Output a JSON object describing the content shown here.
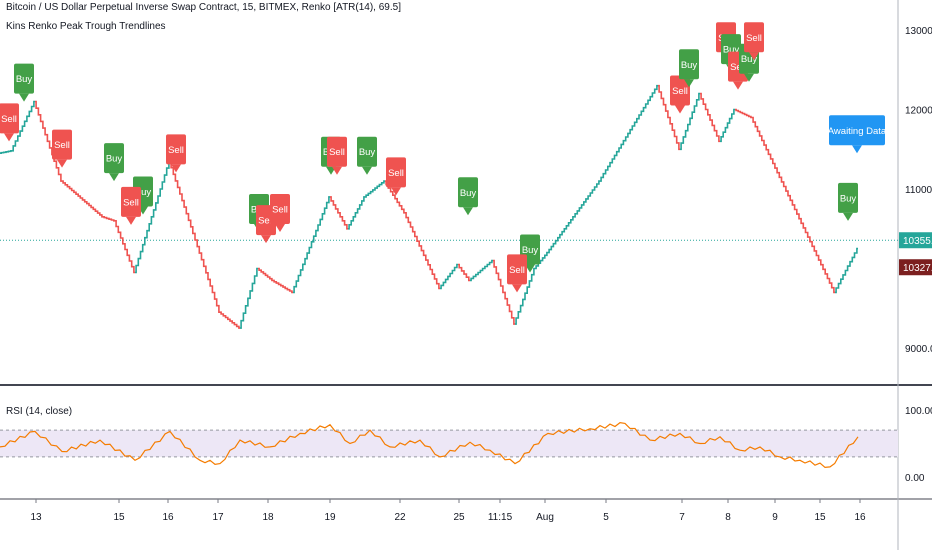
{
  "header": {
    "title": "Bitcoin / US Dollar Perpetual Inverse Swap Contract, 15, BITMEX, Renko [ATR(14), 69.5]",
    "indicator": "Kins Renko Peak Trough Trendlines"
  },
  "rsi_header": "RSI (14, close)",
  "colors": {
    "up": "#26a69a",
    "down": "#ef5350",
    "buy": "#43a047",
    "sell": "#ef5350",
    "awaiting": "#2196f3",
    "rsi_line": "#f57c00",
    "rsi_band": "#ede7f6",
    "last_price": "#26a69a",
    "price_badge": "#7b1f1f",
    "separator": "#434651"
  },
  "chart_data": [
    {
      "type": "line",
      "name": "price",
      "y_axis": {
        "ticks": [
          "13000.0",
          "12000.0",
          "11000.0",
          "9000.0"
        ],
        "ylim": [
          8700,
          13300
        ]
      },
      "x_axis": {
        "ticks": [
          "13",
          "15",
          "16",
          "17",
          "18",
          "19",
          "22",
          "25",
          "11:15",
          "Aug",
          "5",
          "7",
          "8",
          "9",
          "15",
          "16"
        ]
      },
      "last_price_label": "10355.5",
      "secondary_price_label": "10327.0",
      "x": [
        0,
        12,
        35,
        62,
        103,
        115,
        135,
        170,
        220,
        240,
        258,
        273,
        293,
        330,
        348,
        365,
        385,
        405,
        440,
        458,
        470,
        493,
        515,
        535,
        548,
        600,
        658,
        680,
        700,
        720,
        735,
        752,
        835,
        858
      ],
      "y": [
        11450,
        11480,
        12100,
        11100,
        10650,
        10600,
        9950,
        11350,
        9450,
        9250,
        10000,
        9850,
        9700,
        10900,
        10500,
        10900,
        11100,
        10700,
        9750,
        10050,
        9850,
        10100,
        9300,
        10000,
        10200,
        11100,
        12300,
        11500,
        12200,
        11600,
        12000,
        11900,
        9700,
        10250
      ],
      "signals": [
        {
          "label": "Buy",
          "type": "buy",
          "x": 24,
          "y": 12200
        },
        {
          "label": "Sell",
          "type": "sell",
          "x": 9,
          "y": 11700
        },
        {
          "label": "Sell",
          "type": "sell",
          "x": 62,
          "y": 11370
        },
        {
          "label": "Buy",
          "type": "buy",
          "x": 114,
          "y": 11200
        },
        {
          "label": "Sell",
          "type": "sell",
          "x": 176,
          "y": 11310
        },
        {
          "label": "Buy",
          "type": "buy",
          "x": 143,
          "y": 10780
        },
        {
          "label": "Sell",
          "type": "sell",
          "x": 131,
          "y": 10650
        },
        {
          "label": "Buy",
          "type": "buy",
          "x": 259,
          "y": 10560
        },
        {
          "label": "Sell",
          "type": "sell",
          "x": 266,
          "y": 10420
        },
        {
          "label": "Sell",
          "type": "sell",
          "x": 280,
          "y": 10560
        },
        {
          "label": "Buy",
          "type": "buy",
          "x": 331,
          "y": 11280
        },
        {
          "label": "Sell",
          "type": "sell",
          "x": 337,
          "y": 11280
        },
        {
          "label": "Buy",
          "type": "buy",
          "x": 367,
          "y": 11280
        },
        {
          "label": "Sell",
          "type": "sell",
          "x": 396,
          "y": 11020
        },
        {
          "label": "Buy",
          "type": "buy",
          "x": 468,
          "y": 10770
        },
        {
          "label": "Buy",
          "type": "buy",
          "x": 530,
          "y": 10050
        },
        {
          "label": "Sell",
          "type": "sell",
          "x": 517,
          "y": 9800
        },
        {
          "label": "Sell",
          "type": "sell",
          "x": 680,
          "y": 12050
        },
        {
          "label": "Buy",
          "type": "buy",
          "x": 689,
          "y": 12380
        },
        {
          "label": "Sell",
          "type": "sell",
          "x": 726,
          "y": 12720
        },
        {
          "label": "Buy",
          "type": "buy",
          "x": 731,
          "y": 12570
        },
        {
          "label": "Sell",
          "type": "sell",
          "x": 738,
          "y": 12350
        },
        {
          "label": "Buy",
          "type": "buy",
          "x": 749,
          "y": 12450
        },
        {
          "label": "Sell",
          "type": "sell",
          "x": 754,
          "y": 12720
        },
        {
          "label": "Buy",
          "type": "buy",
          "x": 848,
          "y": 10700
        },
        {
          "label": "Awaiting Data",
          "type": "awaiting",
          "x": 857,
          "y": 11550
        }
      ]
    },
    {
      "type": "line",
      "name": "RSI",
      "y_axis": {
        "ticks": [
          "100.00",
          "0.00"
        ],
        "ylim": [
          -35,
          118
        ]
      },
      "band": [
        30,
        70
      ],
      "x": [
        0,
        35,
        62,
        100,
        135,
        170,
        200,
        220,
        240,
        270,
        300,
        330,
        350,
        370,
        390,
        420,
        440,
        470,
        490,
        515,
        548,
        590,
        625,
        650,
        680,
        700,
        720,
        740,
        760,
        780,
        800,
        830,
        858
      ],
      "y": [
        45,
        68,
        38,
        55,
        25,
        68,
        25,
        20,
        55,
        45,
        65,
        78,
        50,
        70,
        45,
        55,
        30,
        52,
        40,
        20,
        65,
        72,
        80,
        55,
        65,
        50,
        60,
        40,
        45,
        30,
        25,
        15,
        60
      ]
    }
  ]
}
